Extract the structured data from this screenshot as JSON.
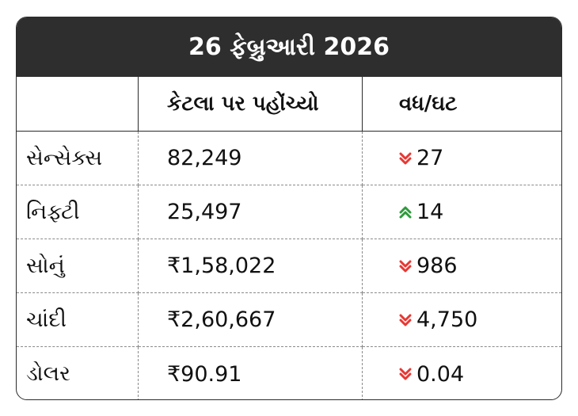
{
  "title": "26 ફેબ્રુઆરી 2026",
  "headers": {
    "name": "",
    "value": "કેટલા પર પહોંચ્યો",
    "change": "વધ/ઘટ"
  },
  "colors": {
    "down": "#e53935",
    "up": "#2e9a3c",
    "title_bg": "#2e2e2e"
  },
  "rows": [
    {
      "name": "સેન્સેક્સ",
      "value": "82,249",
      "change": "27",
      "direction": "down"
    },
    {
      "name": "નિફ્ટી",
      "value": "25,497",
      "change": "14",
      "direction": "up"
    },
    {
      "name": "સોનું",
      "value": "₹1,58,022",
      "change": "986",
      "direction": "down"
    },
    {
      "name": "ચાંદી",
      "value": "₹2,60,667",
      "change": "4,750",
      "direction": "down"
    },
    {
      "name": "ડોલર",
      "value": "₹90.91",
      "change": "0.04",
      "direction": "down"
    }
  ]
}
